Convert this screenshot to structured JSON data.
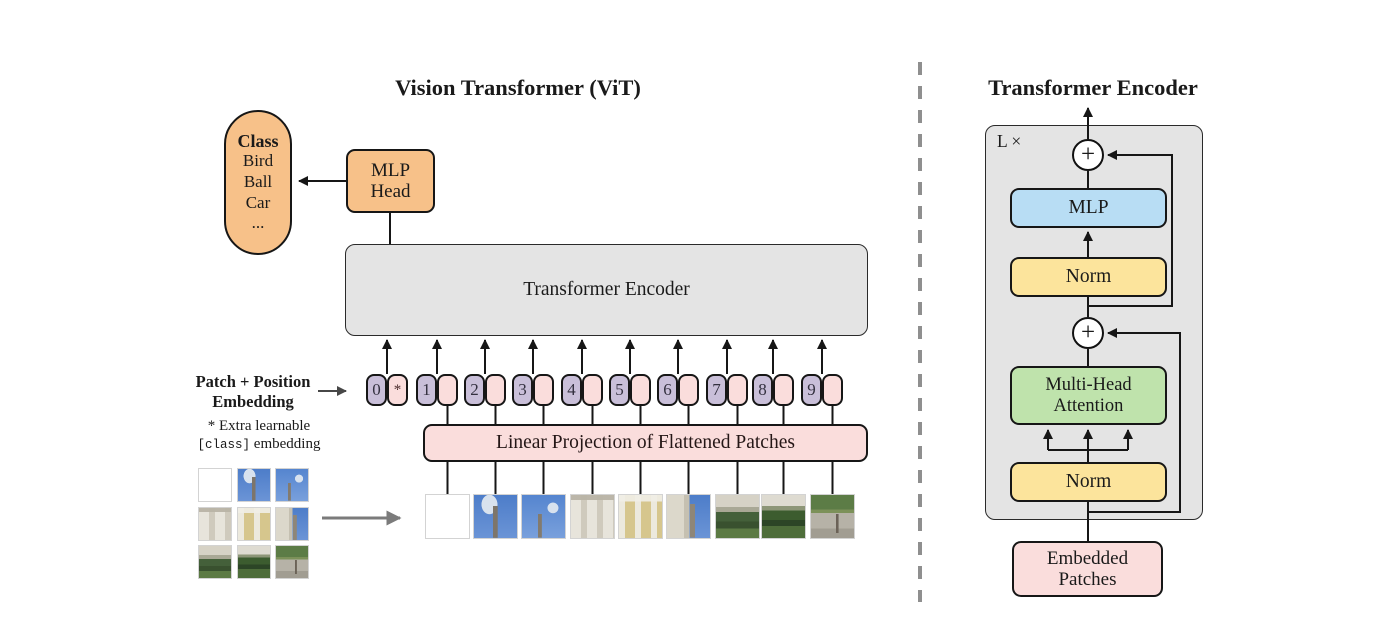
{
  "left_panel": {
    "title": "Vision Transformer (ViT)",
    "class_pill": {
      "header": "Class",
      "items": [
        "Bird",
        "Ball",
        "Car"
      ],
      "ellipsis": "..."
    },
    "mlp_head": {
      "line1": "MLP",
      "line2": "Head"
    },
    "encoder_label": "Transformer Encoder",
    "embedding_label": {
      "line1": "Patch + Position",
      "line2": "Embedding"
    },
    "footnote": {
      "line1": "* Extra learnable",
      "code": "[class]",
      "line2_rest": " embedding"
    },
    "linear_projection": "Linear Projection of Flattened Patches",
    "tokens": [
      "0",
      "1",
      "2",
      "3",
      "4",
      "5",
      "6",
      "7",
      "8",
      "9"
    ],
    "class_token_star": "*"
  },
  "right_panel": {
    "title": "Transformer Encoder",
    "repeat_label": "L ×",
    "plus_symbol": "+",
    "mlp": "MLP",
    "norm_top": "Norm",
    "attention": {
      "line1": "Multi-Head",
      "line2": "Attention"
    },
    "norm_bottom": "Norm",
    "embedded": {
      "line1": "Embedded",
      "line2": "Patches"
    }
  },
  "colors": {
    "orange": "#f7c189",
    "blue": "#b8ddf4",
    "yellow": "#fce49c",
    "green": "#bfe3ac",
    "pink": "#fadddc",
    "purple": "#c9bfd9",
    "panel_grey": "#e4e4e4"
  }
}
